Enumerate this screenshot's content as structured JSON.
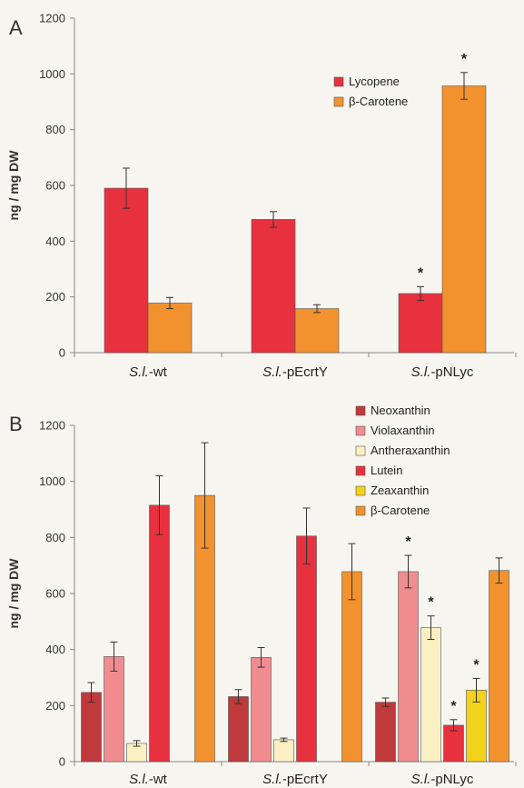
{
  "chart_data": [
    {
      "type": "bar",
      "panel_label": "A",
      "ylabel": "ng / mg DW",
      "ylim": [
        0,
        1200
      ],
      "yticks": [
        0,
        200,
        400,
        600,
        800,
        1000,
        1200
      ],
      "categories": [
        {
          "prefix": "S.l.",
          "suffix": "-wt"
        },
        {
          "prefix": "S.l.",
          "suffix": "-pEcrtY"
        },
        {
          "prefix": "S.l.",
          "suffix": "-pNLyc"
        }
      ],
      "grid": false,
      "legend_position": "upper-right",
      "series": [
        {
          "name": "Lycopene",
          "color": "#e8313f",
          "values": [
            590,
            478,
            212
          ],
          "errors": [
            72,
            28,
            25
          ],
          "significant": [
            false,
            false,
            true
          ]
        },
        {
          "name": "β-Carotene",
          "color": "#f2922e",
          "values": [
            178,
            158,
            957
          ],
          "errors": [
            20,
            14,
            48
          ],
          "significant": [
            false,
            false,
            true
          ]
        }
      ],
      "significance_marker": "*"
    },
    {
      "type": "bar",
      "panel_label": "B",
      "ylabel": "ng / mg DW",
      "ylim": [
        0,
        1200
      ],
      "yticks": [
        0,
        200,
        400,
        600,
        800,
        1000,
        1200
      ],
      "categories": [
        {
          "prefix": "S.l.",
          "suffix": "-wt"
        },
        {
          "prefix": "S.l.",
          "suffix": "-pEcrtY"
        },
        {
          "prefix": "S.l.",
          "suffix": "-pNLyc"
        }
      ],
      "grid": false,
      "legend_position": "top-right",
      "series": [
        {
          "name": "Neoxanthin",
          "color": "#c0393b",
          "values": [
            247,
            232,
            212
          ],
          "errors": [
            35,
            25,
            15
          ],
          "significant": [
            false,
            false,
            false
          ]
        },
        {
          "name": "Violaxanthin",
          "color": "#f08c8f",
          "values": [
            375,
            372,
            678
          ],
          "errors": [
            52,
            35,
            58
          ],
          "significant": [
            false,
            false,
            true
          ]
        },
        {
          "name": "Antheraxanthin",
          "color": "#fbf0c4",
          "values": [
            65,
            78,
            478
          ],
          "errors": [
            10,
            6,
            42
          ],
          "significant": [
            false,
            false,
            true
          ]
        },
        {
          "name": "Lutein",
          "color": "#e8313f",
          "values": [
            915,
            805,
            130
          ],
          "errors": [
            105,
            100,
            20
          ],
          "significant": [
            false,
            false,
            true
          ]
        },
        {
          "name": "Zeaxanthin",
          "color": "#f2d21b",
          "values": [
            0,
            0,
            255
          ],
          "errors": [
            0,
            0,
            42
          ],
          "significant": [
            false,
            false,
            true
          ]
        },
        {
          "name": "β-Carotene",
          "color": "#f2922e",
          "values": [
            950,
            678,
            682
          ],
          "errors": [
            188,
            100,
            45
          ],
          "significant": [
            false,
            false,
            false
          ]
        }
      ],
      "significance_marker": "*"
    }
  ]
}
